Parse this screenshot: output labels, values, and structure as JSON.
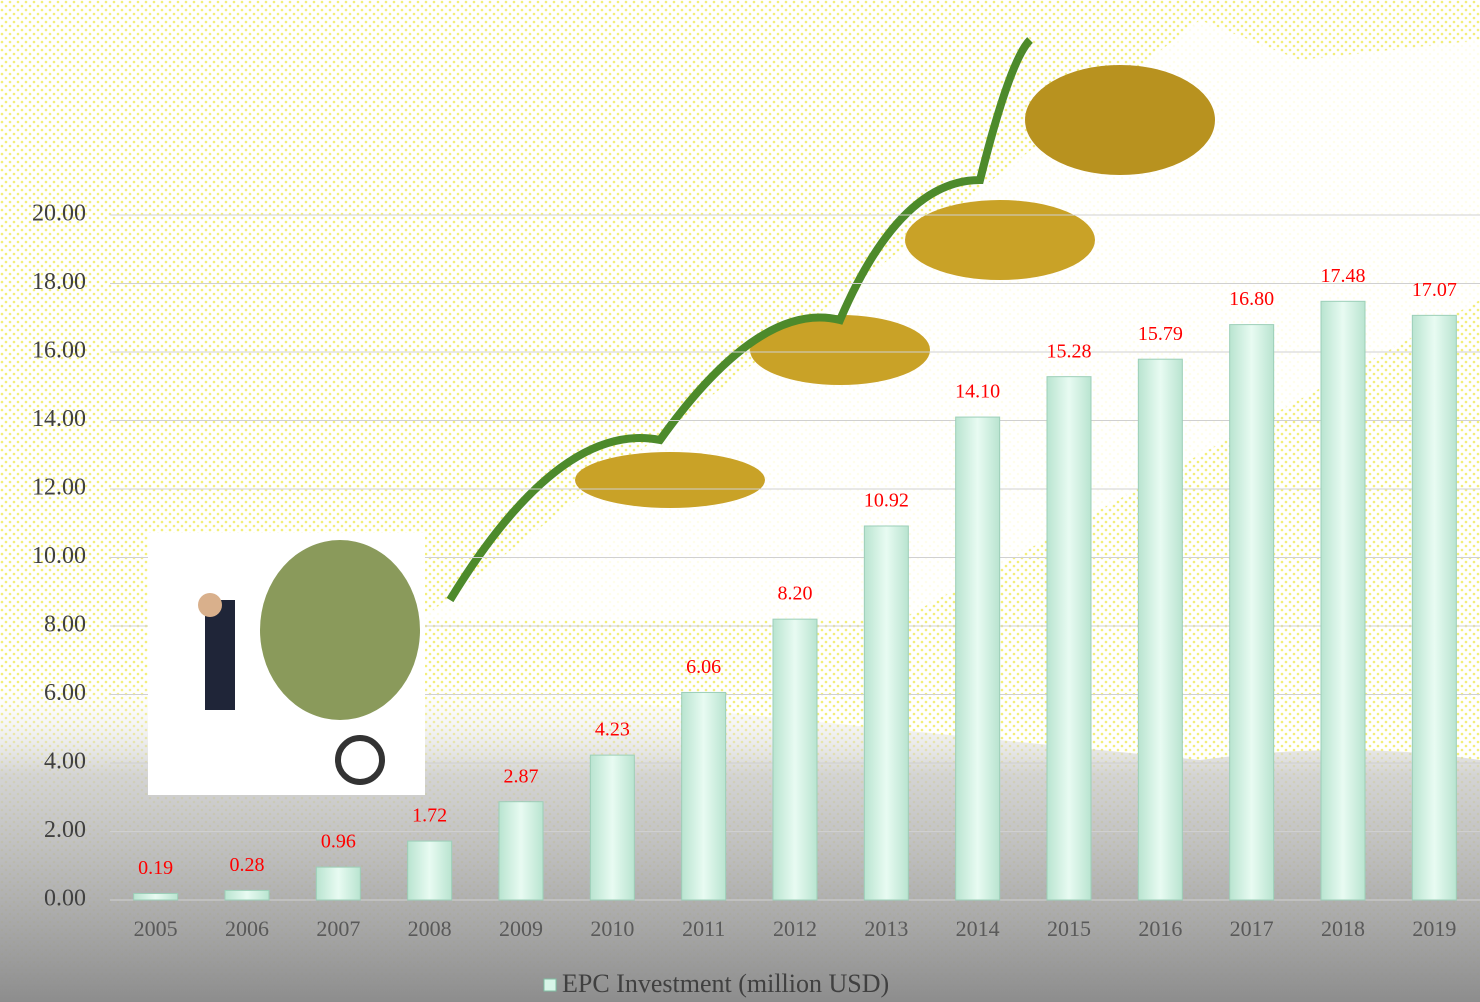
{
  "chart_data": {
    "type": "bar",
    "categories": [
      "2005",
      "2006",
      "2007",
      "2008",
      "2009",
      "2010",
      "2011",
      "2012",
      "2013",
      "2014",
      "2015",
      "2016",
      "2017",
      "2018",
      "2019"
    ],
    "series": [
      {
        "name": "EPC Investment (million USD)",
        "color": "#d8f5e8",
        "values": [
          0.19,
          0.28,
          0.96,
          1.72,
          2.87,
          4.23,
          6.06,
          8.2,
          10.92,
          14.1,
          15.28,
          15.79,
          16.8,
          17.48,
          17.07
        ],
        "value_labels": [
          "0.19",
          "0.28",
          "0.96",
          "1.72",
          "2.87",
          "4.23",
          "6.06",
          "8.20",
          "10.92",
          "14.10",
          "15.28",
          "15.79",
          "16.80",
          "17.48",
          "17.07"
        ]
      }
    ],
    "ylim": [
      0,
      20
    ],
    "yticks": [
      {
        "value": 0,
        "label": "0.00"
      },
      {
        "value": 2,
        "label": "2.00"
      },
      {
        "value": 4,
        "label": "4.00"
      },
      {
        "value": 6,
        "label": "6.00"
      },
      {
        "value": 8,
        "label": "8.00"
      },
      {
        "value": 10,
        "label": "10.00"
      },
      {
        "value": 12,
        "label": "12.00"
      },
      {
        "value": 14,
        "label": "14.00"
      },
      {
        "value": 16,
        "label": "16.00"
      },
      {
        "value": 18,
        "label": "18.00"
      },
      {
        "value": 20,
        "label": "20.00"
      }
    ],
    "grid": true,
    "legend": "bottom"
  }
}
